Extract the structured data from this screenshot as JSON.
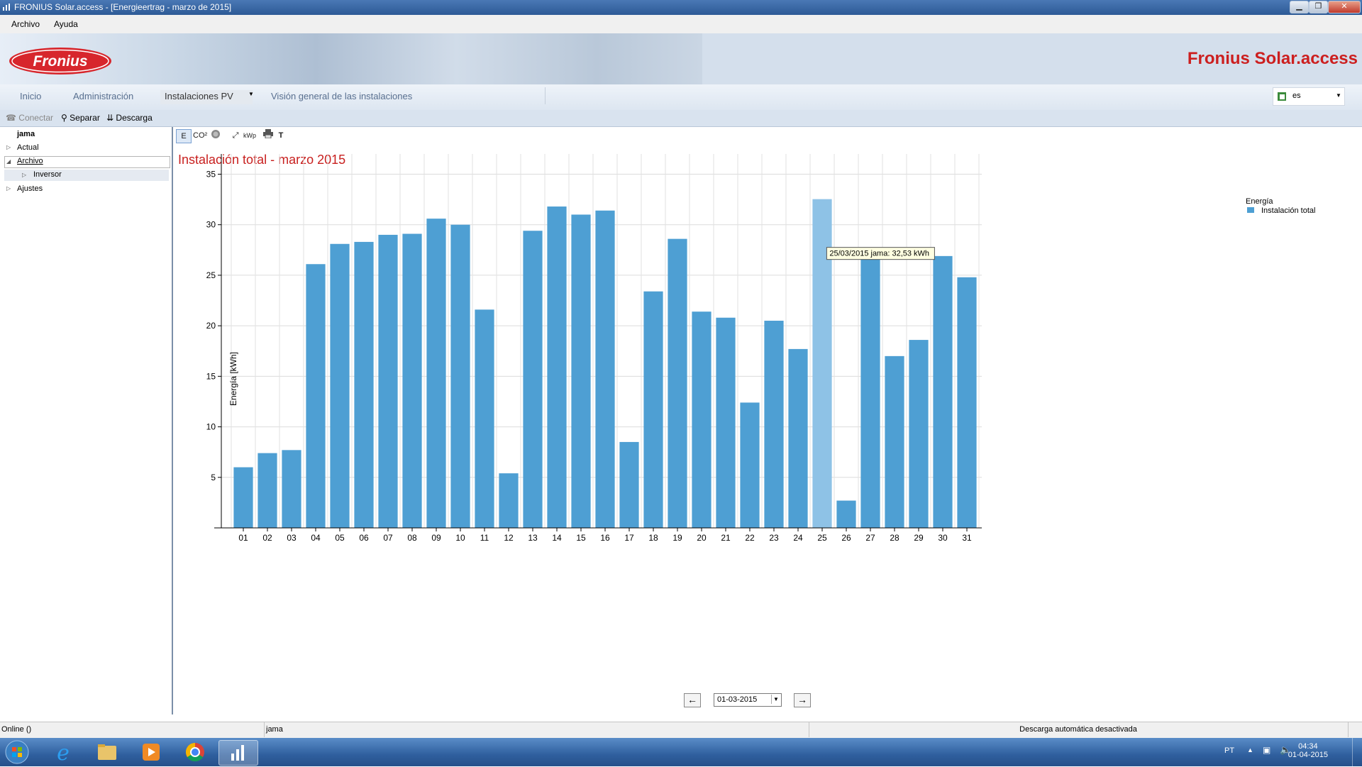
{
  "window": {
    "title": "FRONIUS Solar.access - [Energieertrag - marzo de 2015]"
  },
  "menu": {
    "items": [
      "Archivo",
      "Ayuda"
    ]
  },
  "banner": {
    "brand_logo": "Fronius",
    "app_name": "Fronius Solar.access"
  },
  "nav": {
    "tabs": [
      "Inicio",
      "Administración",
      "Instalaciones PV",
      "Visión general de las instalaciones"
    ],
    "active_tab": "Instalaciones PV",
    "language": "es"
  },
  "toolbar": {
    "connect": "Conectar",
    "disconnect": "Separar",
    "download": "Descarga"
  },
  "tree": {
    "root": "jama",
    "items": [
      "Actual",
      "Archivo",
      "Inversor",
      "Ajustes"
    ],
    "selected": "Archivo"
  },
  "chart_tools": {
    "energy": "E",
    "co2": "CO²",
    "money": "$",
    "zoom": "fit-icon",
    "kwp": "kWp",
    "print": "print-icon",
    "text": "T"
  },
  "chart_title": "Instalación total - marzo 2015",
  "chart_data": {
    "type": "bar",
    "ylabel": "Energía [kWh]",
    "xlabel": "",
    "ylim": [
      0,
      37
    ],
    "yticks": [
      5,
      10,
      15,
      20,
      25,
      30,
      35
    ],
    "grid": true,
    "legend_title": "Energía",
    "legend_position": "top-right",
    "categories": [
      "01",
      "02",
      "03",
      "04",
      "05",
      "06",
      "07",
      "08",
      "09",
      "10",
      "11",
      "12",
      "13",
      "14",
      "15",
      "16",
      "17",
      "18",
      "19",
      "20",
      "21",
      "22",
      "23",
      "24",
      "25",
      "26",
      "27",
      "28",
      "29",
      "30",
      "31"
    ],
    "series": [
      {
        "name": "Instalación total",
        "color": "#4e9fd3",
        "values": [
          6.0,
          7.4,
          7.7,
          26.1,
          28.1,
          28.3,
          29.0,
          29.1,
          30.6,
          30.0,
          21.6,
          5.4,
          29.4,
          31.8,
          31.0,
          31.4,
          8.5,
          23.4,
          28.6,
          21.4,
          20.8,
          12.4,
          20.5,
          17.7,
          32.53,
          2.7,
          27.6,
          17.0,
          18.6,
          26.9,
          24.8
        ]
      }
    ],
    "highlight_index": 24,
    "tooltip": "25/03/2015 jama: 32,53 kWh"
  },
  "date_nav": {
    "selected_date": "01-03-2015"
  },
  "statusbar": {
    "connection": "Online ()",
    "system": "jama",
    "auto_download": "Descarga automática desactivada"
  },
  "taskbar": {
    "lang": "PT",
    "time": "04:34",
    "date": "01-04-2015"
  }
}
